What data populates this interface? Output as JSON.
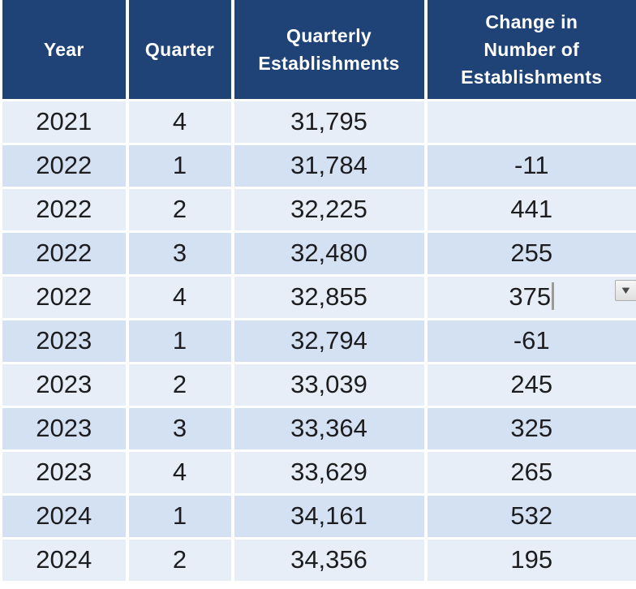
{
  "colors": {
    "header_bg": "#1F4377",
    "header_text": "#FFFFFF",
    "row_light": "#E8EEF8",
    "row_dark": "#D3E1F3",
    "body_text": "#1D1D1F",
    "grid_gap": "#FFFFFF",
    "caret": "#9B9B9B",
    "dropdown_border": "#ADADAD",
    "dropdown_arrow": "#4A4A4A"
  },
  "icons": {
    "dropdown_arrow": "▼"
  },
  "table": {
    "columns": [
      "Year",
      "Quarter",
      "Quarterly\nEstablishments",
      "Change in\nNumber of\nEstablishments"
    ],
    "rows": [
      [
        "2021",
        "4",
        "31,795",
        ""
      ],
      [
        "2022",
        "1",
        "31,784",
        "-11"
      ],
      [
        "2022",
        "2",
        "32,225",
        "441"
      ],
      [
        "2022",
        "3",
        "32,480",
        "255"
      ],
      [
        "2022",
        "4",
        "32,855",
        "375"
      ],
      [
        "2023",
        "1",
        "32,794",
        "-61"
      ],
      [
        "2023",
        "2",
        "33,039",
        "245"
      ],
      [
        "2023",
        "3",
        "33,364",
        "325"
      ],
      [
        "2023",
        "4",
        "33,629",
        "265"
      ],
      [
        "2024",
        "1",
        "34,161",
        "532"
      ],
      [
        "2024",
        "2",
        "34,356",
        "195"
      ]
    ]
  },
  "editing": {
    "row_index": 4,
    "col_index": 3
  }
}
